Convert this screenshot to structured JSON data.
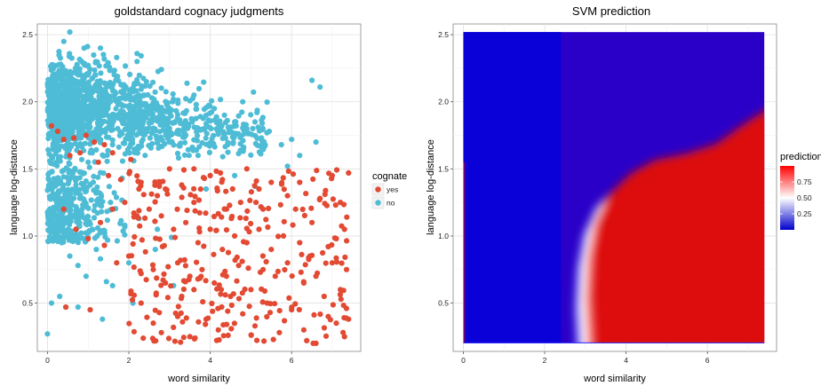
{
  "chart_data": [
    {
      "type": "scatter",
      "title": "goldstandard cognacy judgments",
      "xlabel": "word similarity",
      "ylabel": "language log-distance",
      "xlim": [
        -0.25,
        7.7
      ],
      "ylim": [
        0.14,
        2.58
      ],
      "x_ticks": [
        0,
        2,
        4,
        6
      ],
      "y_ticks": [
        0.5,
        1.0,
        1.5,
        2.0,
        2.5
      ],
      "x_tick_labels": [
        "0",
        "2",
        "4",
        "6"
      ],
      "y_tick_labels": [
        "0.5",
        "1.0",
        "1.5",
        "2.0",
        "2.5"
      ],
      "grid": true,
      "legend": {
        "title": "cognate",
        "placement": "right",
        "entries": [
          {
            "label": "yes",
            "color": "#e24a33"
          },
          {
            "label": "no",
            "color": "#4fbcd6"
          }
        ]
      },
      "series": [
        {
          "name": "no",
          "color": "#4fbcd6",
          "points": [
            [
              0.0,
              0.27
            ],
            [
              0.1,
              0.5
            ],
            [
              0.3,
              0.55
            ],
            [
              0.45,
              0.47
            ],
            [
              0.75,
              0.47
            ],
            [
              1.35,
              0.38
            ],
            [
              1.6,
              0.63
            ],
            [
              1.45,
              0.66
            ],
            [
              0.75,
              0.78
            ],
            [
              1.3,
              0.83
            ],
            [
              2.1,
              0.5
            ],
            [
              3.1,
              0.63
            ],
            [
              3.05,
              0.99
            ],
            [
              2.65,
              0.9
            ],
            [
              2.25,
              1.13
            ],
            [
              0.35,
              0.95
            ],
            [
              0.5,
              1.1
            ],
            [
              0.15,
              1.05
            ],
            [
              0.85,
              1.2
            ],
            [
              1.1,
              1.05
            ],
            [
              1.55,
              1.25
            ],
            [
              2.0,
              0.8
            ],
            [
              0.2,
              1.3
            ],
            [
              0.95,
              0.7
            ],
            [
              1.2,
              0.9
            ],
            [
              0.55,
              0.85
            ],
            [
              2.4,
              1.6
            ],
            [
              2.6,
              1.78
            ],
            [
              3.0,
              1.7
            ],
            [
              3.4,
              1.75
            ],
            [
              3.7,
              1.6
            ],
            [
              3.9,
              1.9
            ],
            [
              4.1,
              1.95
            ],
            [
              4.35,
              1.9
            ],
            [
              4.6,
              1.85
            ],
            [
              4.9,
              1.8
            ],
            [
              5.15,
              1.92
            ],
            [
              5.45,
              1.78
            ],
            [
              5.75,
              1.68
            ],
            [
              6.0,
              1.72
            ],
            [
              6.2,
              1.6
            ],
            [
              6.6,
              1.7
            ],
            [
              6.7,
              2.11
            ],
            [
              6.5,
              2.16
            ],
            [
              4.8,
              2.0
            ],
            [
              3.6,
              2.05
            ],
            [
              2.2,
              2.3
            ],
            [
              2.2,
              2.36
            ],
            [
              1.7,
              2.33
            ],
            [
              1.3,
              2.4
            ],
            [
              0.55,
              2.52
            ],
            [
              0.4,
              2.45
            ],
            [
              0.9,
              2.4
            ],
            [
              5.9,
              1.52
            ],
            [
              5.1,
              1.37
            ],
            [
              4.6,
              1.45
            ],
            [
              3.9,
              1.35
            ],
            [
              2.7,
              1.05
            ],
            [
              1.0,
              1.55
            ]
          ],
          "dense_region": {
            "description_free": "",
            "x_range": [
              0.0,
              2.6
            ],
            "y_range": [
              1.6,
              2.35
            ],
            "count": 1100,
            "sparse_region": {
              "x_range": [
                0.0,
                1.9
              ],
              "y_range": [
                0.9,
                1.6
              ],
              "count": 380
            },
            "upper_right_region": {
              "x_range": [
                2.0,
                5.4
              ],
              "y_range": [
                1.6,
                2.2
              ],
              "count": 420
            }
          }
        },
        {
          "name": "yes",
          "color": "#e24a33",
          "points": [
            [
              0.1,
              1.82
            ],
            [
              0.25,
              1.78
            ],
            [
              0.4,
              1.72
            ],
            [
              0.65,
              1.73
            ],
            [
              0.95,
              1.75
            ],
            [
              1.15,
              1.7
            ],
            [
              1.4,
              1.68
            ],
            [
              1.6,
              1.62
            ],
            [
              2.05,
              1.57
            ],
            [
              0.55,
              1.6
            ],
            [
              0.8,
              1.62
            ],
            [
              1.25,
              1.55
            ],
            [
              1.5,
              1.45
            ],
            [
              1.8,
              1.42
            ],
            [
              2.3,
              1.4
            ],
            [
              2.7,
              1.3
            ],
            [
              3.0,
              1.5
            ],
            [
              3.3,
              1.38
            ],
            [
              3.6,
              1.5
            ],
            [
              4.0,
              1.45
            ],
            [
              4.3,
              1.42
            ],
            [
              4.55,
              1.35
            ],
            [
              4.9,
              1.5
            ],
            [
              5.2,
              1.35
            ],
            [
              5.5,
              1.4
            ],
            [
              5.9,
              1.3
            ],
            [
              6.2,
              1.4
            ],
            [
              6.7,
              1.28
            ],
            [
              7.0,
              1.45
            ],
            [
              7.4,
              1.47
            ],
            [
              7.3,
              1.05
            ],
            [
              7.1,
              0.98
            ],
            [
              6.9,
              0.92
            ],
            [
              6.5,
              1.1
            ],
            [
              6.2,
              0.95
            ],
            [
              5.8,
              1.0
            ],
            [
              5.5,
              0.9
            ],
            [
              5.2,
              1.05
            ],
            [
              4.9,
              0.95
            ],
            [
              4.6,
              1.0
            ],
            [
              4.3,
              0.9
            ],
            [
              4.0,
              1.05
            ],
            [
              3.7,
              0.95
            ],
            [
              3.4,
              1.1
            ],
            [
              3.1,
              1.05
            ],
            [
              2.8,
              1.15
            ],
            [
              2.5,
              1.2
            ],
            [
              2.2,
              1.15
            ],
            [
              1.9,
              1.25
            ],
            [
              1.6,
              1.2
            ],
            [
              1.3,
              1.1
            ],
            [
              1.0,
              0.98
            ],
            [
              0.7,
              1.05
            ],
            [
              0.4,
              1.2
            ],
            [
              0.45,
              0.47
            ],
            [
              1.05,
              0.45
            ],
            [
              2.3,
              0.5
            ],
            [
              2.6,
              0.35
            ],
            [
              2.8,
              0.28
            ],
            [
              3.2,
              0.4
            ],
            [
              3.5,
              0.25
            ],
            [
              3.9,
              0.38
            ],
            [
              4.2,
              0.3
            ],
            [
              4.5,
              0.55
            ],
            [
              4.8,
              0.42
            ],
            [
              5.1,
              0.33
            ],
            [
              5.4,
              0.5
            ],
            [
              5.7,
              0.28
            ],
            [
              6.0,
              0.45
            ],
            [
              6.3,
              0.3
            ],
            [
              6.6,
              0.2
            ],
            [
              6.9,
              0.4
            ],
            [
              7.1,
              0.35
            ],
            [
              7.3,
              0.25
            ],
            [
              7.4,
              0.38
            ],
            [
              7.0,
              0.8
            ],
            [
              6.6,
              0.7
            ],
            [
              6.3,
              0.65
            ],
            [
              5.9,
              0.8
            ],
            [
              5.6,
              0.7
            ],
            [
              5.3,
              0.75
            ],
            [
              5.0,
              0.6
            ],
            [
              4.7,
              0.78
            ],
            [
              4.4,
              0.7
            ],
            [
              4.1,
              0.65
            ],
            [
              3.8,
              0.75
            ],
            [
              3.5,
              0.7
            ],
            [
              3.2,
              0.8
            ],
            [
              2.9,
              0.65
            ],
            [
              2.6,
              0.75
            ],
            [
              2.3,
              0.72
            ],
            [
              2.0,
              0.85
            ],
            [
              1.7,
              0.8
            ],
            [
              1.4,
              0.93
            ],
            [
              3.3,
              0.55
            ],
            [
              3.6,
              0.6
            ],
            [
              6.8,
              0.55
            ],
            [
              7.2,
              0.6
            ],
            [
              6.1,
              1.2
            ],
            [
              5.3,
              1.2
            ],
            [
              4.4,
              1.2
            ],
            [
              3.6,
              1.25
            ],
            [
              2.9,
              1.35
            ],
            [
              7.2,
              1.25
            ],
            [
              7.35,
              0.75
            ],
            [
              6.45,
              0.85
            ]
          ],
          "dense_region": {
            "x_range": [
              2.0,
              7.4
            ],
            "y_range": [
              0.2,
              1.5
            ],
            "count": 260
          }
        }
      ]
    },
    {
      "type": "heatmap",
      "title": "SVM prediction",
      "xlabel": "word similarity",
      "ylabel": "language log-distance",
      "xlim": [
        -0.25,
        7.7
      ],
      "ylim": [
        0.14,
        2.58
      ],
      "x_ticks": [
        0,
        2,
        4,
        6
      ],
      "y_ticks": [
        0.5,
        1.0,
        1.5,
        2.0,
        2.5
      ],
      "x_tick_labels": [
        "0",
        "2",
        "4",
        "6"
      ],
      "y_tick_labels": [
        "0.5",
        "1.0",
        "1.5",
        "2.0",
        "2.5"
      ],
      "data_x_range": [
        0.0,
        7.4
      ],
      "data_y_range": [
        0.2,
        2.52
      ],
      "grid": true,
      "color_scale": {
        "title": "prediction",
        "low_color": "#0000cc",
        "mid_color": "#ffffff",
        "high_color": "#ff0000",
        "breaks": [
          0.25,
          0.5,
          0.75
        ],
        "break_labels": [
          "0.25",
          "0.50",
          "0.75"
        ],
        "limits": [
          0.0,
          1.0
        ],
        "placement": "right"
      },
      "decision_boundary_points": [
        [
          2.95,
          0.2
        ],
        [
          2.9,
          0.5
        ],
        [
          2.95,
          0.8
        ],
        [
          3.1,
          1.05
        ],
        [
          3.4,
          1.25
        ],
        [
          3.9,
          1.4
        ],
        [
          4.5,
          1.5
        ],
        [
          5.3,
          1.55
        ],
        [
          6.0,
          1.62
        ],
        [
          6.6,
          1.75
        ],
        [
          7.0,
          1.83
        ],
        [
          7.4,
          1.9
        ]
      ]
    }
  ]
}
